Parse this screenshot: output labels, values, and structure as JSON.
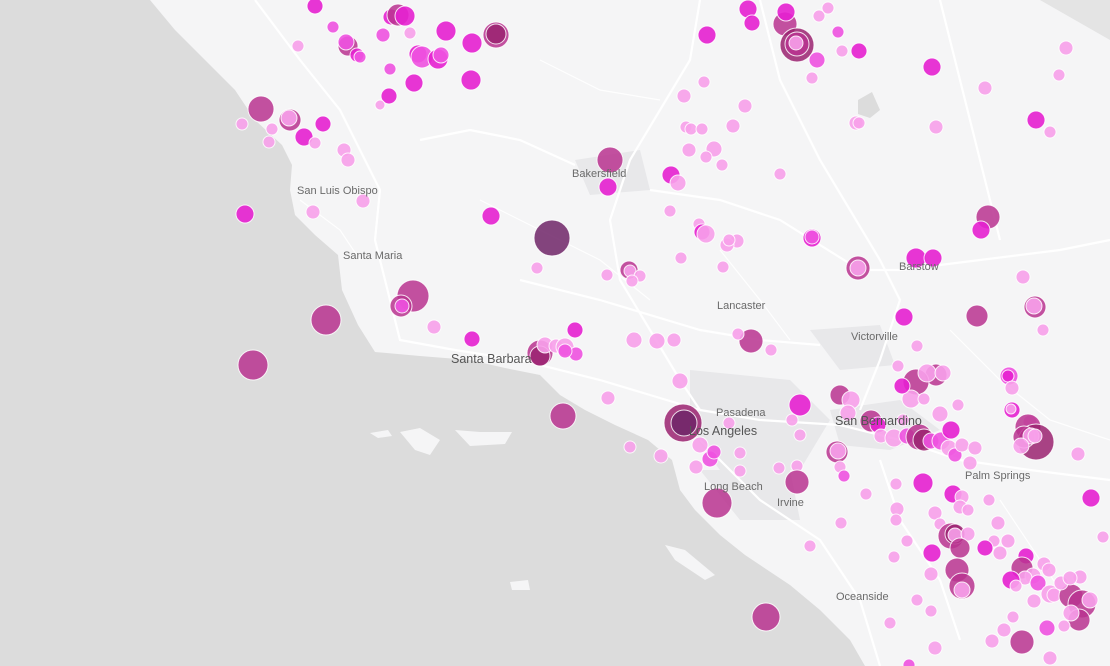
{
  "map": {
    "style": {
      "ocean_color": "#dcdcdc",
      "land_color": "#f5f5f6",
      "road_color": "#ffffff",
      "urban_color": "#e9e9ea",
      "label_color": "#6a6a6a"
    },
    "cities": [
      {
        "id": "san-luis-obispo",
        "label": "San Luis Obispo"
      },
      {
        "id": "bakersfield",
        "label": "Bakersfield"
      },
      {
        "id": "santa-maria",
        "label": "Santa Maria"
      },
      {
        "id": "barstow",
        "label": "Barstow"
      },
      {
        "id": "lancaster",
        "label": "Lancaster"
      },
      {
        "id": "victorville",
        "label": "Victorville"
      },
      {
        "id": "santa-barbara",
        "label": "Santa Barbara"
      },
      {
        "id": "pasadena",
        "label": "Pasadena"
      },
      {
        "id": "san-bernardino",
        "label": "San Bernardino"
      },
      {
        "id": "los-angeles",
        "label": "Los Angeles"
      },
      {
        "id": "palm-springs",
        "label": "Palm Springs"
      },
      {
        "id": "long-beach",
        "label": "Long Beach"
      },
      {
        "id": "irvine",
        "label": "Irvine"
      },
      {
        "id": "oceanside",
        "label": "Oceanside"
      }
    ],
    "markers": {
      "color_scale": [
        "#f7a0ea",
        "#ee52e0",
        "#e620d0",
        "#b8338f",
        "#9a2270",
        "#6e2467"
      ],
      "sizes": [
        "small",
        "medium",
        "large",
        "xlarge"
      ]
    }
  }
}
